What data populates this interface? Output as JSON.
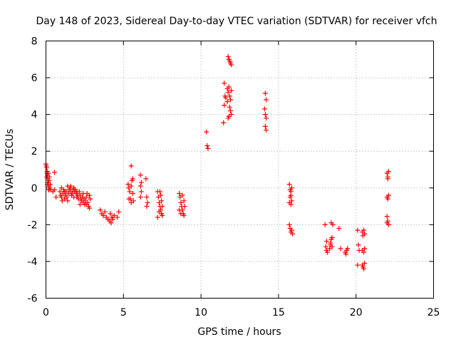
{
  "chart_data": {
    "type": "scatter",
    "title": "Day 148 of 2023, Sidereal Day-to-day VTEC variation (SDTVAR) for receiver vfch",
    "xlabel": "GPS time / hours",
    "ylabel": "SDTVAR / TECUs",
    "xlim": [
      0,
      25
    ],
    "ylim": [
      -6,
      8
    ],
    "x_ticks": [
      0,
      5,
      10,
      15,
      20,
      25
    ],
    "y_ticks": [
      -6,
      -4,
      -2,
      0,
      2,
      4,
      6,
      8
    ],
    "grid": true,
    "marker": "plus",
    "color": "#ff0000",
    "series": [
      {
        "name": "SDTVAR",
        "points": [
          [
            0.0,
            1.3
          ],
          [
            0.05,
            1.1
          ],
          [
            0.08,
            0.9
          ],
          [
            0.1,
            0.7
          ],
          [
            0.12,
            0.5
          ],
          [
            0.15,
            0.3
          ],
          [
            0.18,
            0.1
          ],
          [
            0.2,
            -0.1
          ],
          [
            0.05,
            0.6
          ],
          [
            0.1,
            0.2
          ],
          [
            0.15,
            0.8
          ],
          [
            0.2,
            0.4
          ],
          [
            0.25,
            0.0
          ],
          [
            0.3,
            -0.1
          ],
          [
            0.02,
            1.2
          ],
          [
            0.07,
            0.8
          ],
          [
            0.12,
            0.3
          ],
          [
            0.17,
            -0.1
          ],
          [
            0.22,
            0.6
          ],
          [
            0.28,
            0.2
          ],
          [
            0.55,
            0.85
          ],
          [
            0.55,
            -0.1
          ],
          [
            0.65,
            -0.5
          ],
          [
            0.45,
            -0.2
          ],
          [
            0.9,
            -0.2
          ],
          [
            0.95,
            -0.4
          ],
          [
            1.0,
            -0.5
          ],
          [
            1.05,
            -0.7
          ],
          [
            1.1,
            -0.3
          ],
          [
            1.15,
            -0.1
          ],
          [
            1.2,
            -0.6
          ],
          [
            1.25,
            -0.4
          ],
          [
            1.3,
            -0.2
          ],
          [
            1.35,
            -0.5
          ],
          [
            1.4,
            -0.7
          ],
          [
            1.45,
            -0.3
          ],
          [
            1.5,
            -0.1
          ],
          [
            1.55,
            0.0
          ],
          [
            1.6,
            -0.2
          ],
          [
            1.65,
            -0.4
          ],
          [
            1.7,
            -0.3
          ],
          [
            1.75,
            -0.1
          ],
          [
            1.8,
            0.0
          ],
          [
            1.85,
            -0.2
          ],
          [
            1.9,
            -0.1
          ],
          [
            1.95,
            -0.3
          ],
          [
            2.0,
            -0.5
          ],
          [
            2.05,
            -0.4
          ],
          [
            2.1,
            -0.6
          ],
          [
            2.15,
            -0.2
          ],
          [
            2.2,
            -0.4
          ],
          [
            2.25,
            -0.6
          ],
          [
            2.3,
            -0.7
          ],
          [
            2.35,
            -0.5
          ],
          [
            2.4,
            -0.8
          ],
          [
            2.45,
            -0.6
          ],
          [
            2.5,
            -0.9
          ],
          [
            2.55,
            -0.7
          ],
          [
            2.6,
            -0.5
          ],
          [
            2.65,
            -0.3
          ],
          [
            2.7,
            -0.8
          ],
          [
            2.75,
            -1.0
          ],
          [
            2.8,
            -1.1
          ],
          [
            2.85,
            -0.6
          ],
          [
            1.0,
            0.0
          ],
          [
            1.2,
            -0.2
          ],
          [
            1.4,
            0.1
          ],
          [
            1.6,
            0.1
          ],
          [
            1.8,
            -0.5
          ],
          [
            2.0,
            -0.2
          ],
          [
            2.2,
            -0.9
          ],
          [
            2.4,
            -0.3
          ],
          [
            2.6,
            -0.9
          ],
          [
            2.8,
            -0.4
          ],
          [
            3.5,
            -1.2
          ],
          [
            3.6,
            -1.4
          ],
          [
            3.7,
            -1.5
          ],
          [
            3.8,
            -1.3
          ],
          [
            3.9,
            -1.6
          ],
          [
            4.0,
            -1.7
          ],
          [
            4.1,
            -1.8
          ],
          [
            4.2,
            -1.9
          ],
          [
            4.3,
            -1.7
          ],
          [
            4.4,
            -1.5
          ],
          [
            4.6,
            -1.6
          ],
          [
            4.7,
            -1.3
          ],
          [
            4.15,
            -1.4
          ],
          [
            4.25,
            -1.6
          ],
          [
            5.3,
            0.2
          ],
          [
            5.35,
            0.0
          ],
          [
            5.4,
            -0.2
          ],
          [
            5.45,
            -0.6
          ],
          [
            5.5,
            -0.8
          ],
          [
            5.55,
            0.4
          ],
          [
            5.6,
            0.5
          ],
          [
            5.65,
            -0.7
          ],
          [
            5.35,
            -0.6
          ],
          [
            5.5,
            0.1
          ],
          [
            5.6,
            -0.3
          ],
          [
            5.5,
            1.2
          ],
          [
            6.1,
            0.7
          ],
          [
            6.15,
            0.3
          ],
          [
            6.1,
            0.1
          ],
          [
            6.15,
            -0.2
          ],
          [
            6.1,
            -0.5
          ],
          [
            6.45,
            0.5
          ],
          [
            6.5,
            -0.5
          ],
          [
            6.55,
            -0.8
          ],
          [
            6.5,
            -1.0
          ],
          [
            7.2,
            -0.2
          ],
          [
            7.25,
            -0.5
          ],
          [
            7.3,
            -0.8
          ],
          [
            7.35,
            -1.0
          ],
          [
            7.4,
            -1.2
          ],
          [
            7.45,
            -1.4
          ],
          [
            7.5,
            -1.5
          ],
          [
            7.2,
            -1.6
          ],
          [
            7.3,
            -1.3
          ],
          [
            7.4,
            -0.4
          ],
          [
            7.45,
            -0.7
          ],
          [
            7.5,
            -1.0
          ],
          [
            7.35,
            -0.2
          ],
          [
            8.6,
            -0.3
          ],
          [
            8.65,
            -0.5
          ],
          [
            8.7,
            -0.8
          ],
          [
            8.75,
            -1.0
          ],
          [
            8.8,
            -1.2
          ],
          [
            8.85,
            -1.4
          ],
          [
            8.9,
            -1.5
          ],
          [
            8.6,
            -1.2
          ],
          [
            8.7,
            -1.4
          ],
          [
            8.8,
            -0.4
          ],
          [
            8.9,
            -0.7
          ],
          [
            8.95,
            -1.0
          ],
          [
            10.35,
            3.05
          ],
          [
            10.4,
            2.3
          ],
          [
            10.45,
            2.15
          ],
          [
            11.45,
            3.55
          ],
          [
            11.5,
            5.7
          ],
          [
            11.55,
            5.0
          ],
          [
            11.6,
            4.9
          ],
          [
            11.5,
            4.5
          ],
          [
            11.7,
            4.7
          ],
          [
            11.75,
            5.2
          ],
          [
            11.8,
            5.5
          ],
          [
            11.85,
            4.4
          ],
          [
            11.9,
            4.2
          ],
          [
            11.95,
            4.0
          ],
          [
            11.75,
            3.8
          ],
          [
            11.8,
            3.9
          ],
          [
            11.9,
            4.8
          ],
          [
            11.95,
            5.3
          ],
          [
            11.7,
            5.4
          ],
          [
            11.85,
            5.0
          ],
          [
            11.75,
            7.15
          ],
          [
            11.8,
            7.0
          ],
          [
            11.85,
            6.9
          ],
          [
            11.9,
            6.8
          ],
          [
            11.95,
            6.7
          ],
          [
            14.15,
            5.15
          ],
          [
            14.2,
            4.8
          ],
          [
            14.1,
            4.3
          ],
          [
            14.15,
            4.0
          ],
          [
            14.2,
            3.8
          ],
          [
            14.15,
            3.35
          ],
          [
            14.2,
            3.15
          ],
          [
            15.7,
            0.2
          ],
          [
            15.75,
            -0.1
          ],
          [
            15.8,
            -0.2
          ],
          [
            15.75,
            -0.5
          ],
          [
            15.7,
            -0.8
          ],
          [
            15.8,
            -0.9
          ],
          [
            15.85,
            -0.7
          ],
          [
            15.8,
            -0.4
          ],
          [
            15.85,
            0.0
          ],
          [
            15.7,
            -2.0
          ],
          [
            15.75,
            -2.2
          ],
          [
            15.8,
            -2.4
          ],
          [
            15.85,
            -2.3
          ],
          [
            15.9,
            -2.5
          ],
          [
            18.0,
            -2.0
          ],
          [
            18.1,
            -2.9
          ],
          [
            18.05,
            -3.2
          ],
          [
            18.1,
            -3.4
          ],
          [
            18.15,
            -3.5
          ],
          [
            18.3,
            -3.3
          ],
          [
            18.35,
            -3.1
          ],
          [
            18.4,
            -2.8
          ],
          [
            18.45,
            -2.7
          ],
          [
            18.4,
            -1.9
          ],
          [
            18.5,
            -2.0
          ],
          [
            18.35,
            -3.0
          ],
          [
            18.45,
            -3.2
          ],
          [
            18.9,
            -2.2
          ],
          [
            19.0,
            -3.3
          ],
          [
            19.3,
            -3.5
          ],
          [
            19.4,
            -3.4
          ],
          [
            19.45,
            -3.3
          ],
          [
            19.35,
            -3.6
          ],
          [
            20.1,
            -2.3
          ],
          [
            20.15,
            -3.1
          ],
          [
            20.2,
            -3.4
          ],
          [
            20.1,
            -4.2
          ],
          [
            20.4,
            -2.4
          ],
          [
            20.45,
            -2.6
          ],
          [
            20.5,
            -2.3
          ],
          [
            20.55,
            -2.5
          ],
          [
            20.4,
            -3.4
          ],
          [
            20.5,
            -3.5
          ],
          [
            20.55,
            -3.3
          ],
          [
            20.4,
            -4.2
          ],
          [
            20.45,
            -4.3
          ],
          [
            20.5,
            -4.4
          ],
          [
            20.55,
            -4.1
          ],
          [
            22.0,
            0.8
          ],
          [
            22.05,
            0.6
          ],
          [
            22.1,
            0.9
          ],
          [
            22.05,
            0.5
          ],
          [
            22.0,
            -0.5
          ],
          [
            22.05,
            -0.6
          ],
          [
            22.1,
            -0.4
          ],
          [
            22.0,
            -1.55
          ],
          [
            22.05,
            -1.8
          ],
          [
            22.1,
            -2.0
          ],
          [
            22.0,
            -1.9
          ]
        ]
      }
    ]
  }
}
